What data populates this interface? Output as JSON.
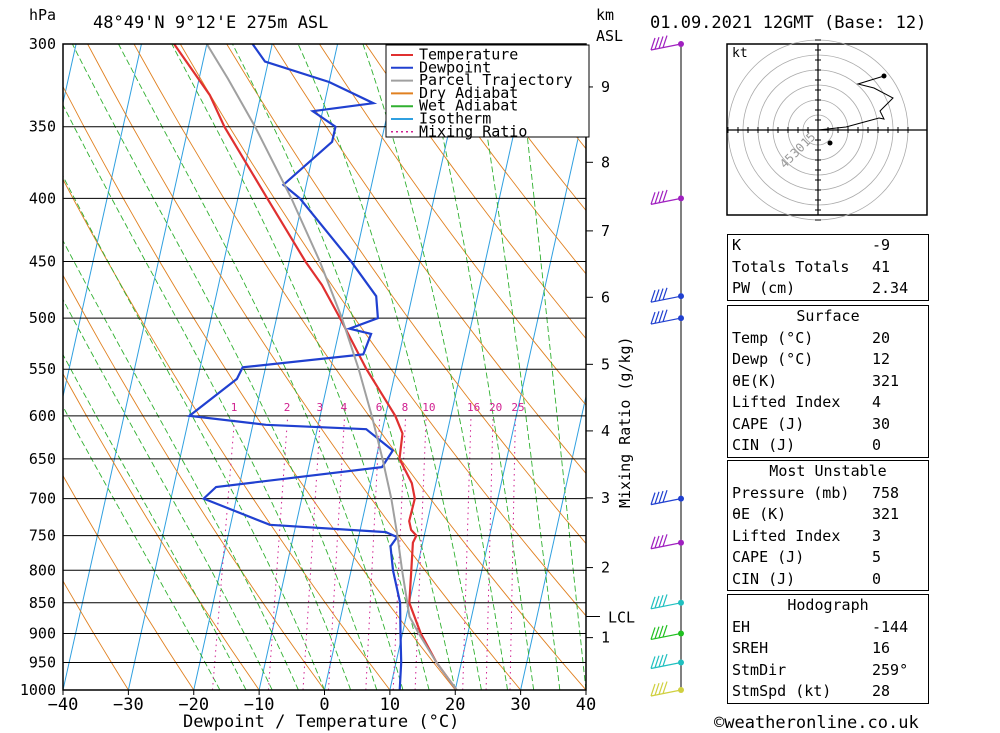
{
  "header": {
    "pressure_unit": "hPa",
    "location": "48°49'N  9°12'E  275m  ASL",
    "km_unit": "km",
    "asl_unit": "ASL",
    "datetime": "01.09.2021  12GMT  (Base: 12)"
  },
  "footer": {
    "xlabel": "Dewpoint / Temperature (°C)",
    "mixing_ratio_label": "Mixing Ratio (g/kg)",
    "credit": "©weatheronline.co.uk"
  },
  "chart_data": {
    "type": "line",
    "subtype": "skew-T log-P sounding",
    "x_axis": {
      "label": "Dewpoint / Temperature (°C)",
      "ticks": [
        -40,
        -30,
        -20,
        -10,
        0,
        10,
        20,
        30,
        40
      ],
      "range": [
        -40,
        40
      ]
    },
    "y_axis": {
      "label": "hPa",
      "scale": "log",
      "ticks": [
        300,
        350,
        400,
        450,
        500,
        550,
        600,
        650,
        700,
        750,
        800,
        850,
        900,
        950,
        1000
      ],
      "range": [
        1000,
        300
      ]
    },
    "height_km_ticks": [
      {
        "label": "1",
        "p": 907
      },
      {
        "label": "2",
        "p": 796
      },
      {
        "label": "3",
        "p": 699
      },
      {
        "label": "4",
        "p": 617
      },
      {
        "label": "5",
        "p": 545
      },
      {
        "label": "6",
        "p": 481
      },
      {
        "label": "7",
        "p": 425
      },
      {
        "label": "8",
        "p": 374
      },
      {
        "label": "9",
        "p": 325
      }
    ],
    "lcl": {
      "label": "LCL",
      "p": 872
    },
    "mixing_ratio_labels": [
      "1",
      "2",
      "3",
      "4",
      "6",
      "8",
      "10",
      "16",
      "20",
      "25"
    ],
    "legend": {
      "placement": "top-right",
      "items": [
        {
          "name": "Temperature",
          "color": "#e03030",
          "style": "solid"
        },
        {
          "name": "Dewpoint",
          "color": "#2040d0",
          "style": "solid"
        },
        {
          "name": "Parcel Trajectory",
          "color": "#a0a0a0",
          "style": "solid"
        },
        {
          "name": "Dry Adiabat",
          "color": "#e08020",
          "style": "solid"
        },
        {
          "name": "Wet Adiabat",
          "color": "#30b030",
          "style": "solid"
        },
        {
          "name": "Isotherm",
          "color": "#30a0e0",
          "style": "solid"
        },
        {
          "name": "Mixing Ratio",
          "color": "#d02090",
          "style": "dotted"
        }
      ]
    },
    "series": [
      {
        "name": "Temperature",
        "color": "#e03030",
        "points": [
          [
            1000,
            20.2
          ],
          [
            950,
            16.2
          ],
          [
            900,
            12.8
          ],
          [
            850,
            10.0
          ],
          [
            800,
            9.2
          ],
          [
            760,
            8.5
          ],
          [
            750,
            8.8
          ],
          [
            742,
            7.8
          ],
          [
            730,
            7.2
          ],
          [
            700,
            7.3
          ],
          [
            680,
            6.3
          ],
          [
            650,
            3.6
          ],
          [
            620,
            3.2
          ],
          [
            600,
            1.5
          ],
          [
            550,
            -4.5
          ],
          [
            500,
            -10.3
          ],
          [
            470,
            -14.2
          ],
          [
            450,
            -17.5
          ],
          [
            400,
            -25.5
          ],
          [
            350,
            -34.5
          ],
          [
            330,
            -37.8
          ],
          [
            300,
            -45.0
          ]
        ]
      },
      {
        "name": "Dewpoint",
        "color": "#2040d0",
        "points": [
          [
            1000,
            11.5
          ],
          [
            950,
            10.8
          ],
          [
            900,
            9.7
          ],
          [
            850,
            8.6
          ],
          [
            800,
            6.4
          ],
          [
            765,
            5.2
          ],
          [
            752,
            5.9
          ],
          [
            745,
            4.0
          ],
          [
            735,
            -14.0
          ],
          [
            700,
            -25.0
          ],
          [
            685,
            -23.5
          ],
          [
            660,
            1.2
          ],
          [
            640,
            2.3
          ],
          [
            615,
            -2.5
          ],
          [
            610,
            -18.0
          ],
          [
            600,
            -30.0
          ],
          [
            560,
            -24.0
          ],
          [
            548,
            -23.5
          ],
          [
            535,
            -5.5
          ],
          [
            515,
            -5.0
          ],
          [
            510,
            -8.5
          ],
          [
            500,
            -4.5
          ],
          [
            480,
            -5.5
          ],
          [
            450,
            -10.5
          ],
          [
            400,
            -20.5
          ],
          [
            390,
            -23.5
          ],
          [
            360,
            -17.5
          ],
          [
            350,
            -17.5
          ],
          [
            340,
            -21.5
          ],
          [
            335,
            -12.5
          ],
          [
            322,
            -20.0
          ],
          [
            310,
            -30.5
          ],
          [
            300,
            -33.0
          ]
        ]
      },
      {
        "name": "Parcel Trajectory",
        "color": "#a0a0a0",
        "points": [
          [
            1000,
            20.2
          ],
          [
            950,
            16.2
          ],
          [
            900,
            12.5
          ],
          [
            872,
            10.5
          ],
          [
            800,
            7.8
          ],
          [
            750,
            5.9
          ],
          [
            700,
            3.7
          ],
          [
            650,
            1.0
          ],
          [
            600,
            -2.1
          ],
          [
            550,
            -5.7
          ],
          [
            500,
            -10.0
          ],
          [
            450,
            -15.3
          ],
          [
            400,
            -21.8
          ],
          [
            350,
            -29.8
          ],
          [
            320,
            -35.6
          ],
          [
            300,
            -40.0
          ]
        ]
      }
    ],
    "wind_barbs": [
      {
        "p": 300,
        "color": "#a020c0"
      },
      {
        "p": 400,
        "color": "#a020c0"
      },
      {
        "p": 480,
        "color": "#2040d0"
      },
      {
        "p": 500,
        "color": "#2040d0"
      },
      {
        "p": 700,
        "color": "#2040d0"
      },
      {
        "p": 760,
        "color": "#a020c0"
      },
      {
        "p": 850,
        "color": "#20c0c0"
      },
      {
        "p": 900,
        "color": "#20c020"
      },
      {
        "p": 950,
        "color": "#20c0c0"
      },
      {
        "p": 1000,
        "color": "#d0d040"
      }
    ]
  },
  "hodograph": {
    "unit_label": "kt",
    "ring_labels": [
      "15",
      "30",
      "45"
    ],
    "trace": [
      [
        0,
        0
      ],
      [
        28,
        -3
      ],
      [
        50,
        -9
      ],
      [
        61,
        -12
      ],
      [
        66,
        -11
      ],
      [
        62,
        -19
      ],
      [
        75,
        -32
      ],
      [
        56,
        -42
      ],
      [
        40,
        -46
      ],
      [
        66,
        -54
      ]
    ],
    "storm_motion_dot": [
      12,
      -13
    ]
  },
  "indices": {
    "rows": [
      {
        "label": "K",
        "value": "-9"
      },
      {
        "label": "Totals Totals",
        "value": "41"
      },
      {
        "label": "PW (cm)",
        "value": "2.34"
      }
    ],
    "surface": {
      "title": "Surface",
      "rows": [
        {
          "label": "Temp (°C)",
          "value": "20"
        },
        {
          "label": "Dewp (°C)",
          "value": "12"
        },
        {
          "label": "θE(K)",
          "value": "321"
        },
        {
          "label": "Lifted Index",
          "value": "4"
        },
        {
          "label": "CAPE (J)",
          "value": "30"
        },
        {
          "label": "CIN (J)",
          "value": "0"
        }
      ]
    },
    "most_unstable": {
      "title": "Most Unstable",
      "rows": [
        {
          "label": "Pressure (mb)",
          "value": "758"
        },
        {
          "label": "θE (K)",
          "value": "321"
        },
        {
          "label": "Lifted Index",
          "value": "3"
        },
        {
          "label": "CAPE (J)",
          "value": "5"
        },
        {
          "label": "CIN (J)",
          "value": "0"
        }
      ]
    },
    "hodograph_stats": {
      "title": "Hodograph",
      "rows": [
        {
          "label": "EH",
          "value": "-144"
        },
        {
          "label": "SREH",
          "value": "16"
        },
        {
          "label": "StmDir",
          "value": "259°"
        },
        {
          "label": "StmSpd (kt)",
          "value": "28"
        }
      ]
    }
  }
}
